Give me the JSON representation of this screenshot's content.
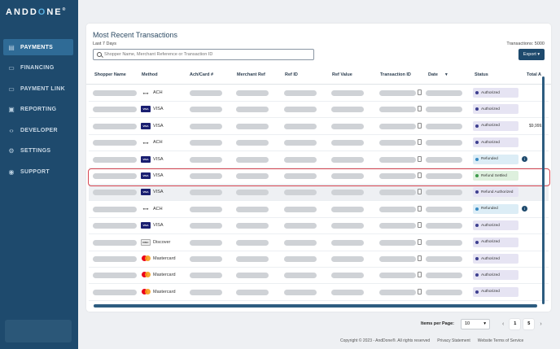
{
  "brand": {
    "logo_main": "ANDD",
    "logo_accent": "O",
    "logo_rest": "NE",
    "logo_mark": "®"
  },
  "sidebar": {
    "items": [
      {
        "label": "PAYMENTS",
        "icon": "payments-icon",
        "active": true
      },
      {
        "label": "FINANCING",
        "icon": "financing-icon",
        "active": false
      },
      {
        "label": "PAYMENT LINK",
        "icon": "payment-link-icon",
        "active": false
      },
      {
        "label": "REPORTING",
        "icon": "reporting-icon",
        "active": false
      },
      {
        "label": "DEVELOPER",
        "icon": "developer-icon",
        "active": false
      },
      {
        "label": "SETTINGS",
        "icon": "settings-icon",
        "active": false
      },
      {
        "label": "SUPPORT",
        "icon": "support-icon",
        "active": false
      }
    ]
  },
  "main": {
    "title": "Most Recent Transactions",
    "subtitle": "Last 7 Days",
    "transactions_count": "Transactions: 5000",
    "search_placeholder": "Shopper Name, Merchant Reference or Transaction ID",
    "export_label": "Export"
  },
  "table": {
    "headers": [
      "Shopper Name",
      "Method",
      "Ach/Card #",
      "Merchant Ref",
      "Ref ID",
      "Ref Value",
      "Transaction ID",
      "Date",
      "Status",
      "Total A"
    ],
    "rows": [
      {
        "method": "ACH",
        "brand": "ach",
        "status": "Authorized",
        "status_type": "authorized",
        "amount": ""
      },
      {
        "method": "VISA",
        "brand": "visa",
        "status": "Authorized",
        "status_type": "authorized",
        "amount": ""
      },
      {
        "method": "VISA",
        "brand": "visa",
        "status": "Authorized",
        "status_type": "authorized",
        "amount": "$9,999."
      },
      {
        "method": "ACH",
        "brand": "ach",
        "status": "Authorized",
        "status_type": "authorized",
        "amount": ""
      },
      {
        "method": "VISA",
        "brand": "visa",
        "status": "Refunded",
        "status_type": "refunded",
        "amount": "",
        "info": true
      },
      {
        "method": "VISA",
        "brand": "visa",
        "status": "Refund Settled",
        "status_type": "settled",
        "amount": ""
      },
      {
        "method": "VISA",
        "brand": "visa",
        "status": "Refund Authorized",
        "status_type": "authorized",
        "amount": ""
      },
      {
        "method": "ACH",
        "brand": "ach",
        "status": "Refunded",
        "status_type": "refunded",
        "amount": "",
        "info": true
      },
      {
        "method": "VISA",
        "brand": "visa",
        "status": "Authorized",
        "status_type": "authorized",
        "amount": ""
      },
      {
        "method": "Discover",
        "brand": "discover",
        "status": "Authorized",
        "status_type": "authorized",
        "amount": ""
      },
      {
        "method": "Mastercard",
        "brand": "mc",
        "status": "Authorized",
        "status_type": "authorized",
        "amount": ""
      },
      {
        "method": "Mastercard",
        "brand": "mc",
        "status": "Authorized",
        "status_type": "authorized",
        "amount": ""
      },
      {
        "method": "Mastercard",
        "brand": "mc",
        "status": "Authorized",
        "status_type": "authorized",
        "amount": ""
      }
    ]
  },
  "pager": {
    "items_per_page_label": "Items per Page:",
    "items_per_page": "10",
    "page_current": "1",
    "page_last": "5",
    "prev": "‹",
    "next": "›"
  },
  "footer": {
    "copyright": "Copyright © 2023 - AndDone®. All rights reserved",
    "privacy": "Privacy Statement",
    "terms": "Website Terms of Service"
  },
  "colors": {
    "sidebar": "#1e4a6d",
    "accent": "#5ab0e0",
    "authorized": "#e6e4f3",
    "refunded": "#dcedf6",
    "settled": "#def0de",
    "highlight": "#d64550"
  }
}
